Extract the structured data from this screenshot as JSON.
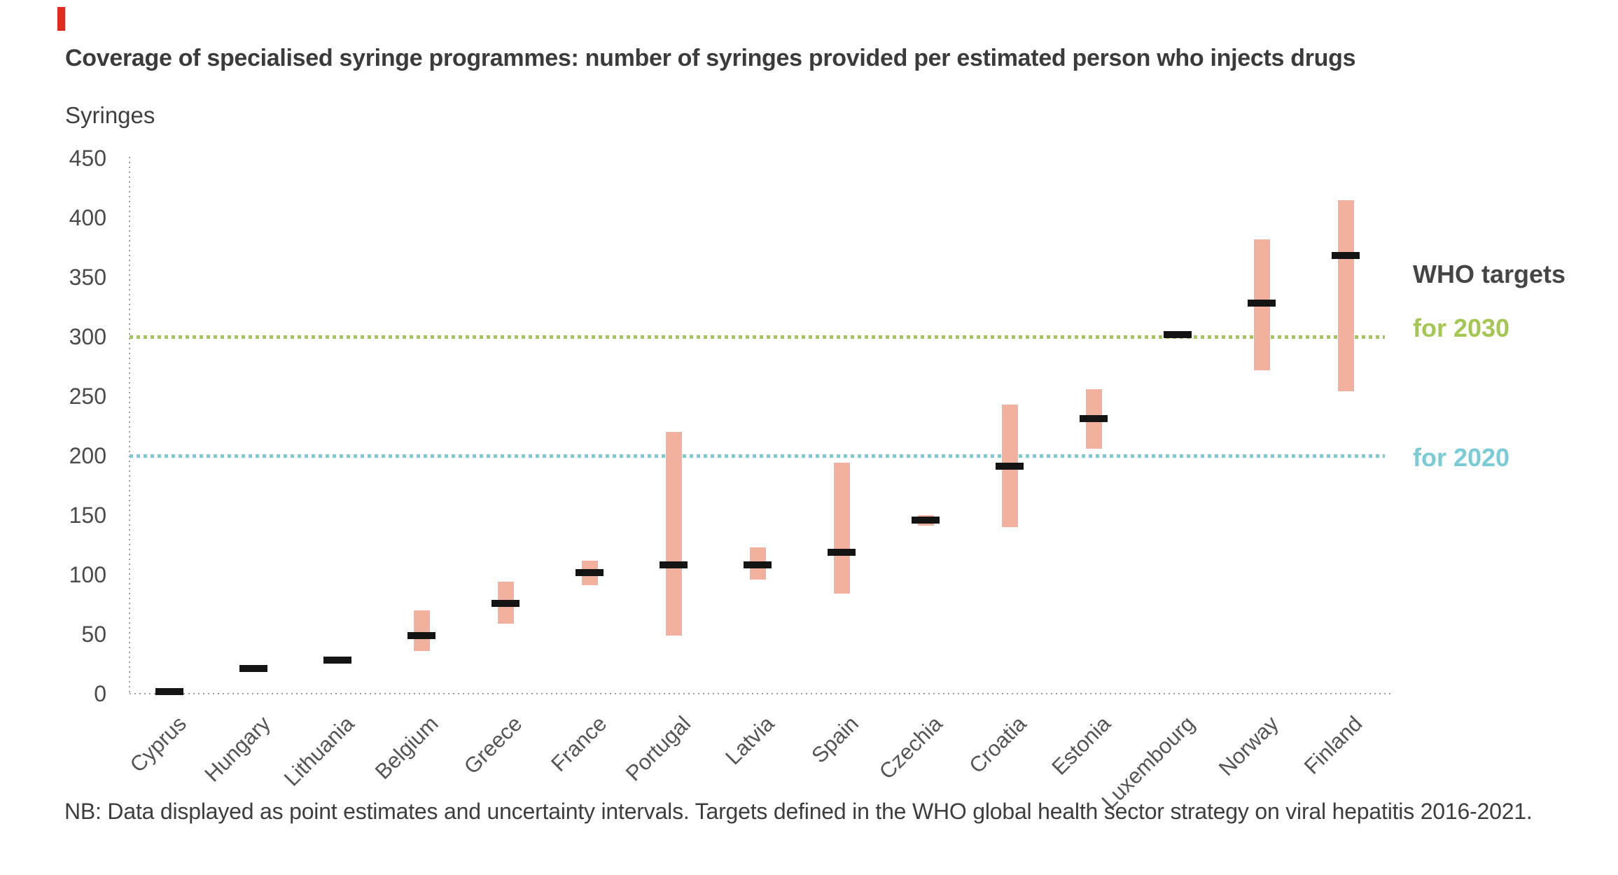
{
  "page": {
    "background": "#ffffff",
    "brand_bar_color": "#e02b20"
  },
  "header": {
    "title": "Coverage of specialised syringe programmes: number of syringes provided per estimated person who injects drugs"
  },
  "note": "NB: Data displayed as point estimates and uncertainty intervals. Targets defined in the WHO global health sector strategy on viral hepatitis 2016-2021.",
  "who_targets": {
    "heading": "WHO targets",
    "label_2030": "for 2030",
    "label_2020": "for 2020"
  },
  "chart_data": {
    "type": "scatter",
    "subtype": "point-estimates-with-uncertainty-intervals",
    "title": "Coverage of specialised syringe programmes: number of syringes provided per estimated person who injects drugs",
    "ylabel": "Syringes",
    "xlabel": "",
    "ylim": [
      0,
      450
    ],
    "yticks": [
      450,
      400,
      350,
      300,
      250,
      200,
      150,
      100,
      50,
      0
    ],
    "grid": false,
    "legend_position": "right",
    "categories": [
      "Cyprus",
      "Hungary",
      "Lithuania",
      "Belgium",
      "Greece",
      "France",
      "Portugal",
      "Latvia",
      "Spain",
      "Czechia",
      "Croatia",
      "Estonia",
      "Luxembourg",
      "Norway",
      "Finland"
    ],
    "countries": [
      {
        "name": "Cyprus",
        "point": 2,
        "low": null,
        "high": null
      },
      {
        "name": "Hungary",
        "point": 21,
        "low": null,
        "high": null
      },
      {
        "name": "Lithuania",
        "point": 28,
        "low": null,
        "high": null
      },
      {
        "name": "Belgium",
        "point": 49,
        "low": 36,
        "high": 70
      },
      {
        "name": "Greece",
        "point": 76,
        "low": 59,
        "high": 94
      },
      {
        "name": "France",
        "point": 102,
        "low": 91,
        "high": 112
      },
      {
        "name": "Portugal",
        "point": 108,
        "low": 49,
        "high": 220
      },
      {
        "name": "Latvia",
        "point": 108,
        "low": 96,
        "high": 123
      },
      {
        "name": "Spain",
        "point": 119,
        "low": 84,
        "high": 194
      },
      {
        "name": "Czechia",
        "point": 146,
        "low": 141,
        "high": 150
      },
      {
        "name": "Croatia",
        "point": 191,
        "low": 140,
        "high": 243
      },
      {
        "name": "Estonia",
        "point": 231,
        "low": 206,
        "high": 256
      },
      {
        "name": "Luxembourg",
        "point": 302,
        "low": null,
        "high": null
      },
      {
        "name": "Norway",
        "point": 328,
        "low": 272,
        "high": 382
      },
      {
        "name": "Finland",
        "point": 368,
        "low": 254,
        "high": 415
      }
    ],
    "target_lines": [
      {
        "name": "2030",
        "label": "for 2030",
        "value": 300,
        "color": "#a4c751"
      },
      {
        "name": "2020",
        "label": "for 2020",
        "value": 200,
        "color": "#79cbd6"
      }
    ],
    "colors": {
      "interval": "#f2b19c",
      "point": "#141414",
      "axis": "#9b9b9b"
    }
  }
}
